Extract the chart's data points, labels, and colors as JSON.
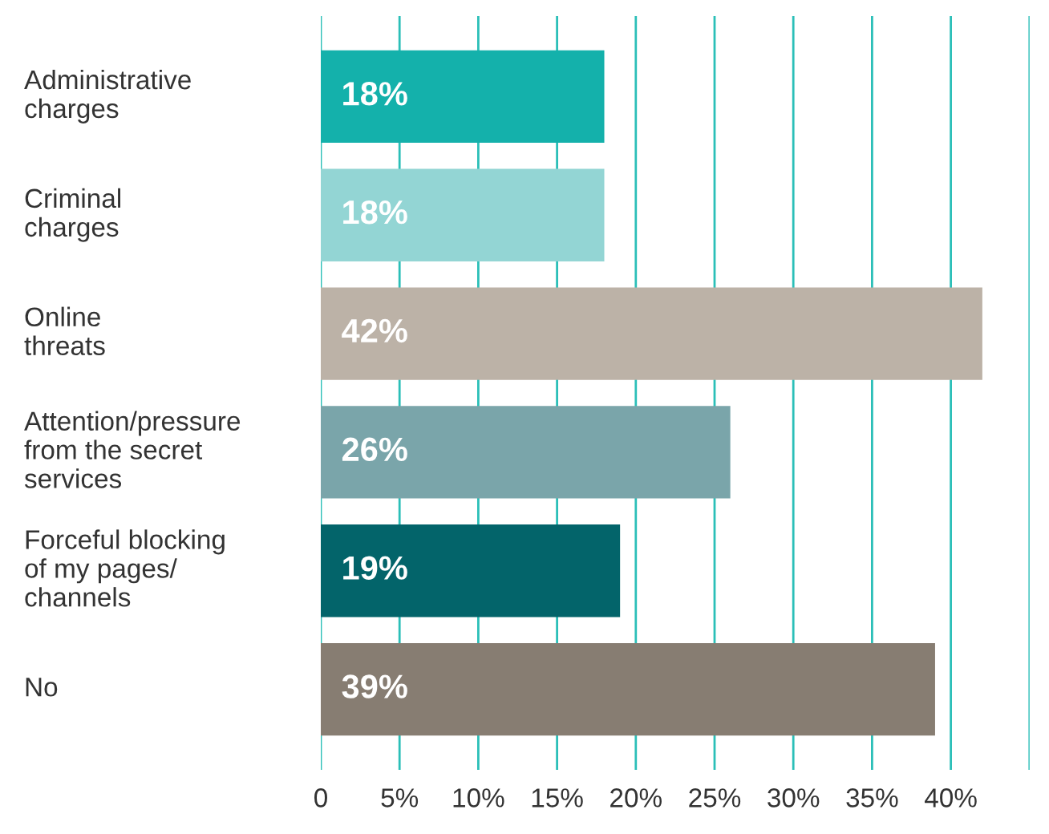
{
  "chart_data": {
    "type": "bar",
    "orientation": "horizontal",
    "categories": [
      "Administrative\ncharges",
      "Criminal\ncharges",
      "Online\nthreats",
      "Attention/pressure\nfrom the secret\nservices",
      "Forceful blocking\nof my pages/\nchannels",
      "No"
    ],
    "values": [
      18,
      18,
      42,
      26,
      19,
      39
    ],
    "colors": [
      "#14b1ab",
      "#93d5d4",
      "#bcb2a7",
      "#7aa5aa",
      "#03646a",
      "#877d72"
    ],
    "value_labels": [
      "18%",
      "18%",
      "42%",
      "26%",
      "19%",
      "39%"
    ],
    "xlim": [
      0,
      45
    ],
    "xticks": [
      0,
      {
        "value": 5,
        "label": "5%"
      },
      {
        "value": 10,
        "label": "10%"
      },
      {
        "value": 15,
        "label": "15%"
      },
      {
        "value": 20,
        "label": "20%"
      },
      {
        "value": 25,
        "label": "25%"
      },
      {
        "value": 30,
        "label": "30%"
      },
      {
        "value": 35,
        "label": "35%"
      },
      {
        "value": 40,
        "label": "40%"
      },
      {
        "value": 45,
        "label": null
      }
    ],
    "grid": "x",
    "legend": false
  }
}
